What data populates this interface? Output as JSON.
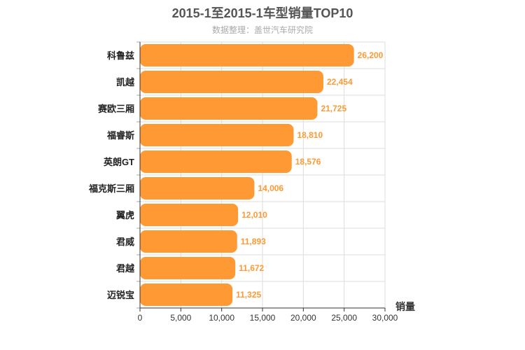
{
  "chart_data": {
    "type": "bar",
    "orientation": "horizontal",
    "title": "2015-1至2015-1车型销量TOP10",
    "subtitle": "数据整理：盖世汽车研究院",
    "xlabel": "销量",
    "ylabel": "",
    "categories": [
      "科鲁兹",
      "凯越",
      "赛欧三厢",
      "福睿斯",
      "英朗GT",
      "福克斯三厢",
      "翼虎",
      "君威",
      "君越",
      "迈锐宝"
    ],
    "values": [
      26200,
      22454,
      21725,
      18810,
      18576,
      14006,
      12010,
      11893,
      11672,
      11325
    ],
    "value_labels": [
      "26,200",
      "22,454",
      "21,725",
      "18,810",
      "18,576",
      "14,006",
      "12,010",
      "11,893",
      "11,672",
      "11,325"
    ],
    "xlim": [
      0,
      30000
    ],
    "xticks": [
      0,
      5000,
      10000,
      15000,
      20000,
      25000,
      30000
    ],
    "xtick_labels": [
      "0",
      "5,000",
      "10,000",
      "15,000",
      "20,000",
      "25,000",
      "30,000"
    ],
    "grid": true,
    "legend": "none",
    "colors": {
      "bar": "#ff9933",
      "value_label": "#ff9933",
      "grid": "#dddddd",
      "axis": "#333333",
      "title": "#555555",
      "subtitle": "#aaaaaa"
    }
  }
}
